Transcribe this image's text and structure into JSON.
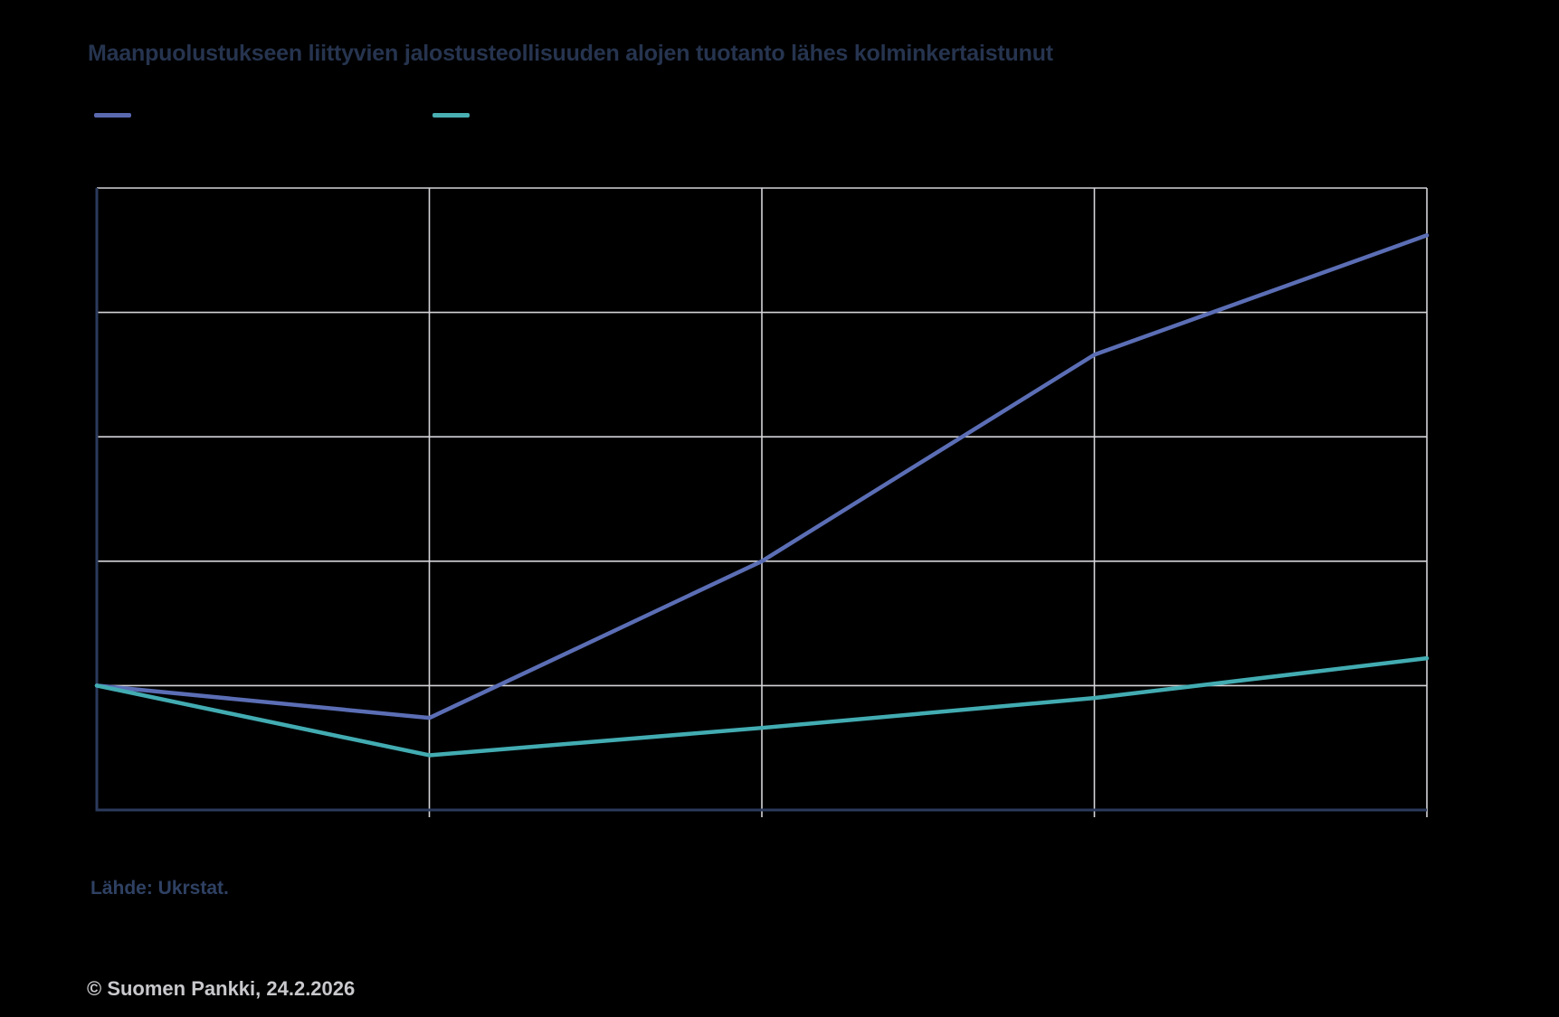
{
  "title": "Maanpuolustukseen liittyvien jalostusteollisuuden alojen tuotanto lähes kolminkertaistunut",
  "legend": {
    "items": [
      {
        "label": "",
        "color": "#5A68AE"
      },
      {
        "label": "",
        "color": "#49AFB2"
      }
    ]
  },
  "source_text": "Lähde: Ukrstat.",
  "copyright_text": "© Suomen Pankki, 24.2.2026",
  "colors": {
    "background": "#000000",
    "title_text": "#26344F",
    "source_text": "#2F4163",
    "copyright_text": "#C9C9CD",
    "gridline": "#D4D4D9",
    "axis": "#2B3A5C",
    "series_1": "#5B6EB5",
    "series_2": "#42ACB2"
  },
  "chart_data": {
    "type": "line",
    "x": [
      0,
      1,
      2,
      3,
      4
    ],
    "x_tick_labels": [
      "",
      "",
      "",
      "",
      ""
    ],
    "x_tick_labels_visible": false,
    "series": [
      {
        "name": "",
        "color": "#5B6EB5",
        "values": [
          100,
          87,
          150,
          233,
          281
        ]
      },
      {
        "name": "",
        "color": "#42ACB2",
        "values": [
          100,
          72,
          83,
          95,
          111
        ]
      }
    ],
    "title": "Maanpuolustukseen liittyvien jalostusteollisuuden alojen tuotanto lähes kolminkertaistunut",
    "xlabel": "",
    "ylabel": "",
    "ylim": [
      50,
      300
    ],
    "ytick_step": 50,
    "ytick_labels_visible": false,
    "grid": true,
    "legend_position": "top-left",
    "baseline_index_value": 100
  }
}
